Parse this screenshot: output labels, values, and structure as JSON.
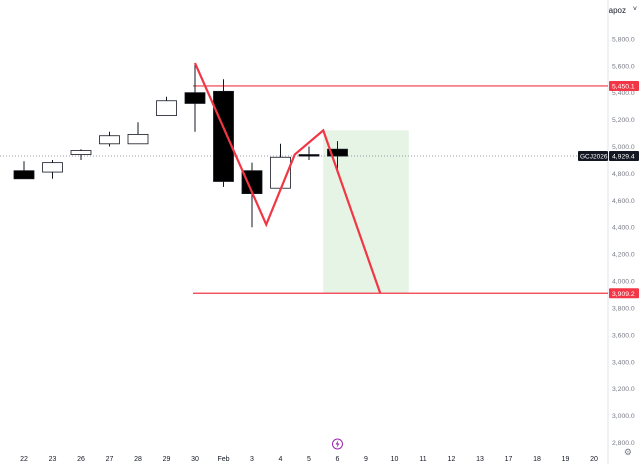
{
  "header": {
    "scale_label": "apoz",
    "chevron": "˅"
  },
  "settings_icon": "⚙",
  "chart_data": {
    "type": "candlestick",
    "symbol": "GCJ2026",
    "last_price": 4929.4,
    "last_price_label": "4,929.4",
    "ylim": [
      2700,
      6000
    ],
    "y_ticks": [
      {
        "v": 5800,
        "label": "5,800.0"
      },
      {
        "v": 5600,
        "label": "5,600.0"
      },
      {
        "v": 5400,
        "label": "5,400.0"
      },
      {
        "v": 5200,
        "label": "5,200.0"
      },
      {
        "v": 5000,
        "label": "5,000.0"
      },
      {
        "v": 4800,
        "label": "4,800.0"
      },
      {
        "v": 4600,
        "label": "4,600.0"
      },
      {
        "v": 4400,
        "label": "4,400.0"
      },
      {
        "v": 4200,
        "label": "4,200.0"
      },
      {
        "v": 4000,
        "label": "4,000.0"
      },
      {
        "v": 3800,
        "label": "3,800.0"
      },
      {
        "v": 3600,
        "label": "3,600.0"
      },
      {
        "v": 3400,
        "label": "3,400.0"
      },
      {
        "v": 3200,
        "label": "3,200.0"
      },
      {
        "v": 3000,
        "label": "3,000.0"
      },
      {
        "v": 2800,
        "label": "2,800.0"
      }
    ],
    "x_ticks": [
      "22",
      "23",
      "26",
      "27",
      "28",
      "29",
      "30",
      "Feb",
      "3",
      "4",
      "5",
      "6",
      "9",
      "10",
      "11",
      "12",
      "13",
      "17",
      "18",
      "19",
      "20"
    ],
    "candles": [
      {
        "x": 0,
        "open": 4820,
        "high": 4890,
        "low": 4760,
        "close": 4760
      },
      {
        "x": 1,
        "open": 4810,
        "high": 4900,
        "low": 4760,
        "close": 4880
      },
      {
        "x": 2,
        "open": 4940,
        "high": 4980,
        "low": 4900,
        "close": 4970
      },
      {
        "x": 3,
        "open": 5020,
        "high": 5110,
        "low": 5000,
        "close": 5080
      },
      {
        "x": 4,
        "open": 5020,
        "high": 5180,
        "low": 5020,
        "close": 5090
      },
      {
        "x": 5,
        "open": 5230,
        "high": 5370,
        "low": 5230,
        "close": 5340
      },
      {
        "x": 6,
        "open": 5400,
        "high": 5620,
        "low": 5110,
        "close": 5320
      },
      {
        "x": 7,
        "open": 5410,
        "high": 5500,
        "low": 4700,
        "close": 4740
      },
      {
        "x": 8,
        "open": 4820,
        "high": 4880,
        "low": 4400,
        "close": 4650
      },
      {
        "x": 9,
        "open": 4690,
        "high": 5020,
        "low": 4680,
        "close": 4920
      },
      {
        "x": 10,
        "open": 4940,
        "high": 5000,
        "low": 4900,
        "close": 4930
      },
      {
        "x": 11,
        "open": 4980,
        "high": 5040,
        "low": 4800,
        "close": 4929
      }
    ],
    "horizontal_lines": [
      {
        "price": 5450.1,
        "label": "5,450.1",
        "start_x": 6
      },
      {
        "price": 3909.2,
        "label": "3,909.2",
        "start_x": 6
      }
    ],
    "projection_path": [
      {
        "x": 6,
        "price": 5620
      },
      {
        "x": 8.5,
        "price": 4420
      },
      {
        "x": 9.5,
        "price": 4940
      },
      {
        "x": 10.5,
        "price": 5120
      },
      {
        "x": 12.5,
        "price": 3909.2
      }
    ],
    "target_zone": {
      "x_start": 10.5,
      "x_end": 13.5,
      "price_top": 5120,
      "price_bottom": 3909.2
    },
    "event_marker_x": 11,
    "colors": {
      "line": "#f23645",
      "zone": "#e6f4e5",
      "bear": "#000000",
      "bull_fill": "#ffffff",
      "wick": "#131722",
      "axis_text": "#787b86",
      "label_bg": "#f23645",
      "price_bg": "#131722"
    }
  }
}
